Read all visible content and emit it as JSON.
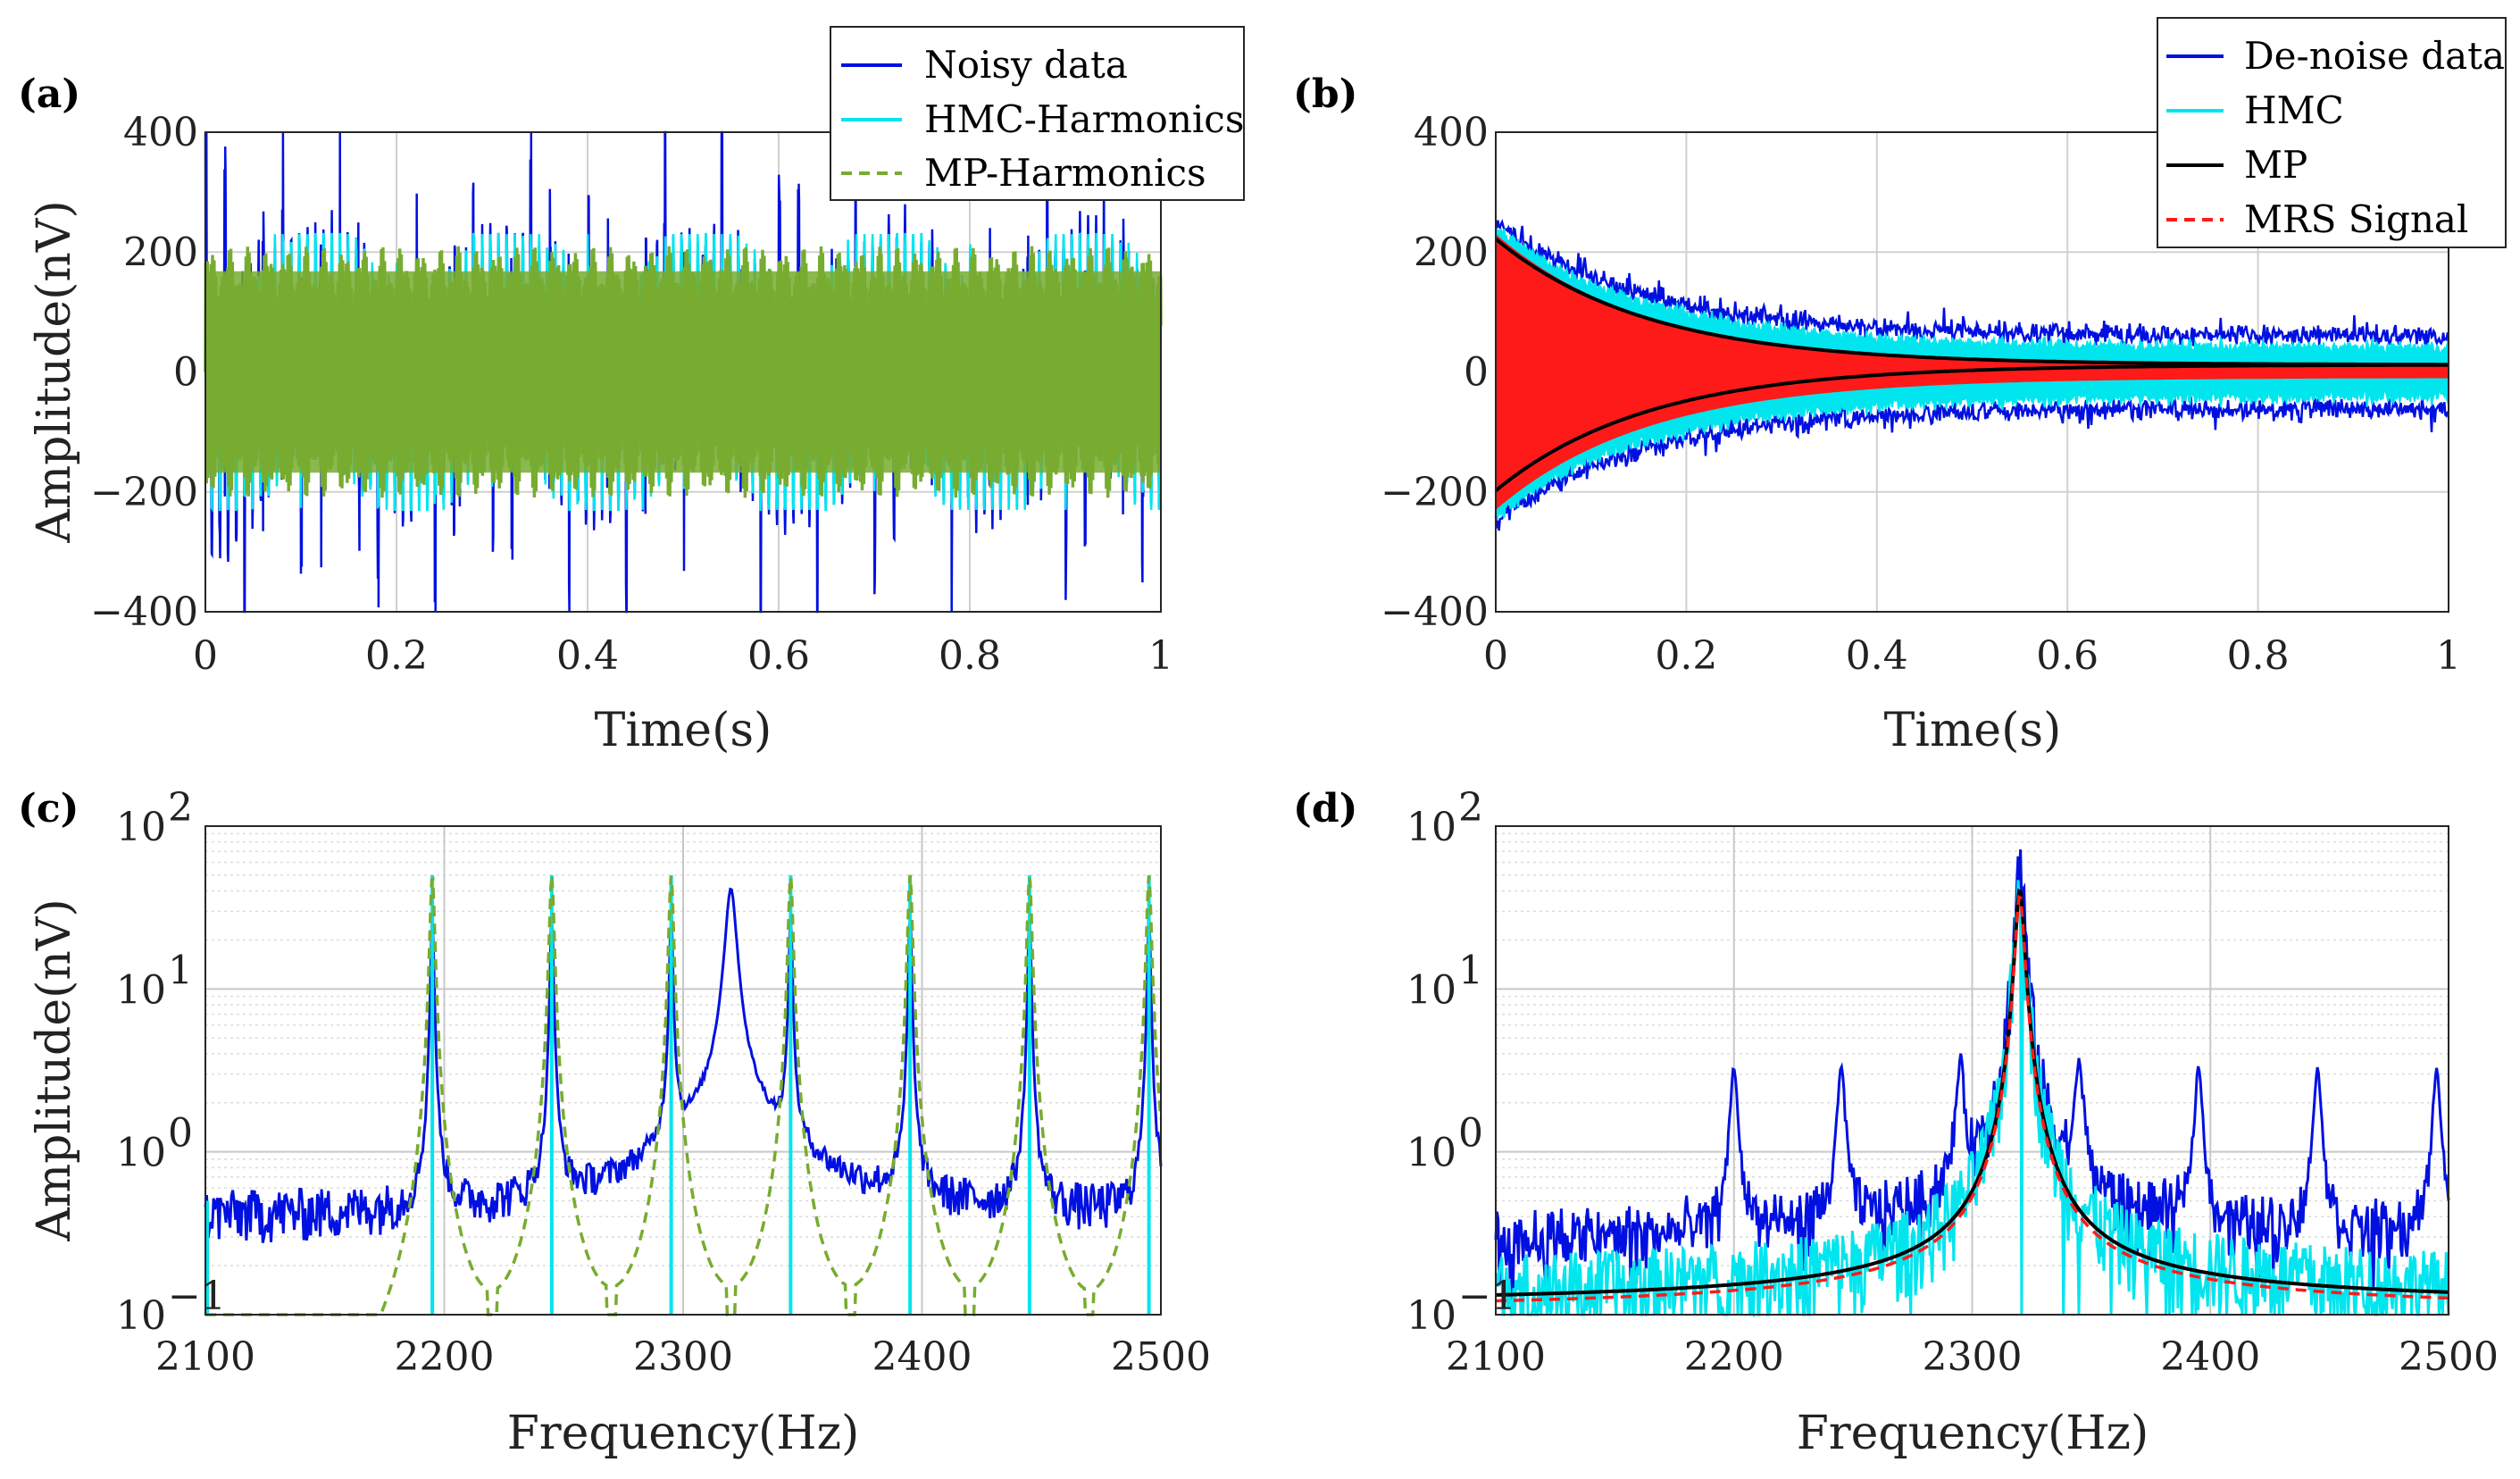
{
  "chart_data": [
    {
      "id": "a",
      "panel_label": "(a)",
      "type": "line",
      "xlabel": "Time(s)",
      "ylabel": "Amplitude(nV)",
      "xlim": [
        0,
        1
      ],
      "ylim": [
        -400,
        400
      ],
      "x_ticks": [
        "0",
        "0.2",
        "0.4",
        "0.6",
        "0.8",
        "1"
      ],
      "y_ticks": [
        "−400",
        "−200",
        "0",
        "200",
        "400"
      ],
      "yscale": "linear",
      "grid": true,
      "legend_position": "top-right",
      "series": [
        {
          "name": "Noisy data",
          "color": "#0010e0",
          "style": "solid",
          "description_values": {
            "peak_amplitude_start": 400,
            "typical_amplitude": 230,
            "harmonic_period_s": 0.02
          }
        },
        {
          "name": "HMC-Harmonics",
          "color": "#00e5ee",
          "style": "solid",
          "description_values": {
            "typical_amplitude": 210
          }
        },
        {
          "name": "MP-Harmonics",
          "color": "#77ac30",
          "style": "dashed",
          "description_values": {
            "typical_amplitude": 210
          }
        }
      ]
    },
    {
      "id": "b",
      "panel_label": "(b)",
      "type": "line",
      "xlabel": "Time(s)",
      "ylabel": "",
      "xlim": [
        0,
        1
      ],
      "ylim": [
        -400,
        400
      ],
      "x_ticks": [
        "0",
        "0.2",
        "0.4",
        "0.6",
        "0.8",
        "1"
      ],
      "y_ticks": [
        "−400",
        "−200",
        "0",
        "200",
        "400"
      ],
      "yscale": "linear",
      "grid": true,
      "legend_position": "top-right",
      "series": [
        {
          "name": "De-noise data",
          "color": "#0010e0",
          "style": "solid",
          "description_values": {
            "initial_amplitude": 250,
            "final_amplitude": 60,
            "decay_time_s": 0.15
          }
        },
        {
          "name": "HMC",
          "color": "#00e5ee",
          "style": "solid",
          "description_values": {
            "initial_amplitude": 240,
            "final_amplitude": 40
          }
        },
        {
          "name": "MP",
          "color": "#000000",
          "style": "solid",
          "description_values": {
            "initial_amplitude": 222,
            "final_amplitude": 12,
            "decay_time_s": 0.16
          }
        },
        {
          "name": "MRS Signal",
          "color": "#ff1a1a",
          "style": "dashed",
          "description_values": {
            "initial_amplitude": 220,
            "decay_time_s": 0.16
          }
        }
      ]
    },
    {
      "id": "c",
      "panel_label": "(c)",
      "type": "line",
      "xlabel": "Frequency(Hz)",
      "ylabel": "Amplitude(nV)",
      "xlim": [
        2100,
        2500
      ],
      "ylim": [
        0.1,
        100
      ],
      "x_ticks": [
        "2100",
        "2200",
        "2300",
        "2400",
        "2500"
      ],
      "y_ticks_exp": [
        "-1",
        "0",
        "1",
        "2"
      ],
      "yscale": "log",
      "grid": true,
      "series": [
        {
          "name": "Noisy data",
          "color": "#0010e0",
          "style": "solid",
          "description_values": {
            "peak_freq_hz": 2320,
            "peak_amplitude": 40,
            "noise_floor": 0.4
          }
        },
        {
          "name": "HMC-Harmonics",
          "color": "#00e5ee",
          "style": "solid",
          "description_values": {
            "harmonic_freqs_hz": [
              2195,
              2245,
              2295,
              2345,
              2395,
              2445,
              2495
            ],
            "harmonic_amplitude": 50
          }
        },
        {
          "name": "MP-Harmonics",
          "color": "#77ac30",
          "style": "dashed",
          "description_values": {
            "harmonic_freqs_hz": [
              2195,
              2245,
              2295,
              2345,
              2395,
              2445,
              2495
            ],
            "harmonic_amplitude": 50
          }
        }
      ]
    },
    {
      "id": "d",
      "panel_label": "(d)",
      "type": "line",
      "xlabel": "Frequency(Hz)",
      "ylabel": "",
      "xlim": [
        2100,
        2500
      ],
      "ylim": [
        0.1,
        100
      ],
      "x_ticks": [
        "2100",
        "2200",
        "2300",
        "2400",
        "2500"
      ],
      "y_ticks_exp": [
        "-1",
        "0",
        "1",
        "2"
      ],
      "yscale": "log",
      "grid": true,
      "series": [
        {
          "name": "De-noise data",
          "color": "#0010e0",
          "style": "solid",
          "description_values": {
            "peak_freq_hz": 2320,
            "peak_amplitude": 40,
            "residual_peaks_hz": [
              2200,
              2245,
              2295,
              2345,
              2395,
              2445,
              2495
            ]
          }
        },
        {
          "name": "HMC",
          "color": "#00e5ee",
          "style": "solid",
          "description_values": {
            "peak_freq_hz": 2320,
            "peak_amplitude": 40
          }
        },
        {
          "name": "MP",
          "color": "#000000",
          "style": "solid",
          "description_values": {
            "peak_freq_hz": 2320,
            "peak_amplitude": 45,
            "floor_at_2100": 0.15,
            "floor_at_2500": 0.2
          }
        },
        {
          "name": "MRS Signal",
          "color": "#ff1a1a",
          "style": "dashed",
          "description_values": {
            "peak_freq_hz": 2320,
            "peak_amplitude": 40
          }
        }
      ]
    }
  ]
}
